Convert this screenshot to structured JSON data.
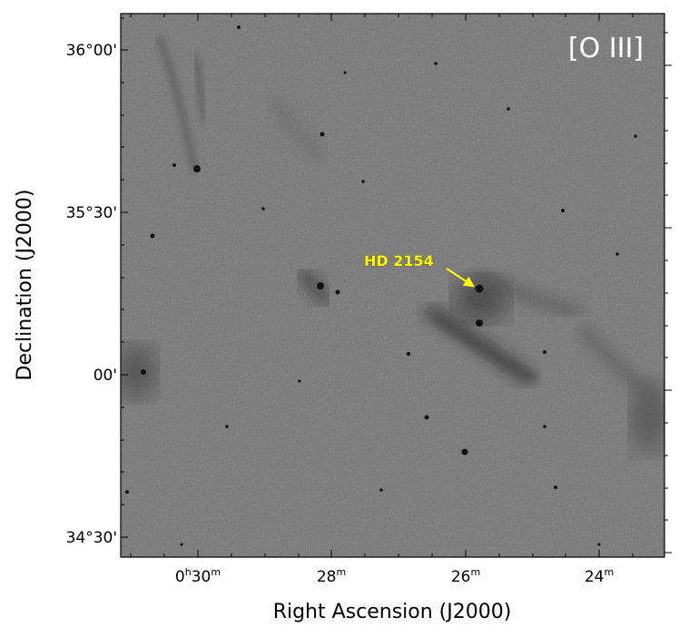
{
  "filter_label": "[O III]",
  "annotation": {
    "label": "HD 2154",
    "color": "#ffff00"
  },
  "axes": {
    "xlabel": "Right Ascension (J2000)",
    "ylabel": "Declination (J2000)",
    "x_ticks": [
      {
        "main": "0",
        "sup1": "h",
        "mid": "30",
        "sup2": "m"
      },
      {
        "main": "28",
        "sup1": "m",
        "mid": "",
        "sup2": ""
      },
      {
        "main": "26",
        "sup1": "m",
        "mid": "",
        "sup2": ""
      },
      {
        "main": "24",
        "sup1": "m",
        "mid": "",
        "sup2": ""
      }
    ],
    "y_ticks": [
      "36°00'",
      "35°30'",
      "00'",
      "34°30'"
    ]
  },
  "image": {
    "description_colors": {
      "background": "#8a8a8a",
      "nebula": "#2a2a2a"
    }
  }
}
